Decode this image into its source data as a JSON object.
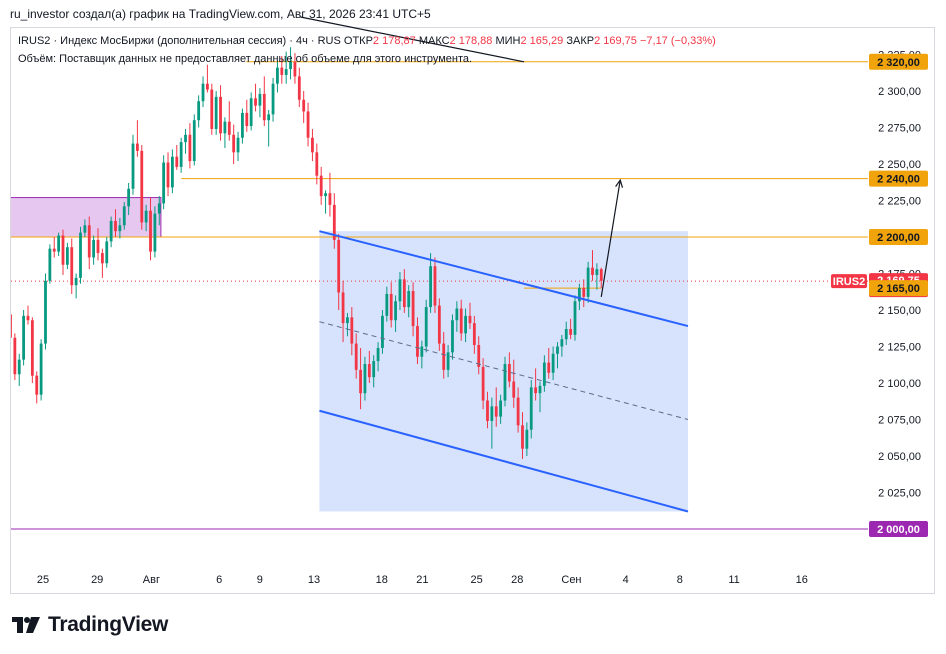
{
  "header": {
    "text": "ru_investor создал(а) график на TradingView.com, Авг 31, 2026 23:41 UTC+5"
  },
  "legend": {
    "symbol": "IRUS2 · Индекс МосБиржи (дополнительная сессия) · 4ч · RUS",
    "open_label": "ОТКР",
    "open_value": "2 178,87",
    "high_label": "МАКС",
    "high_value": "2 178,88",
    "low_label": "МИН",
    "low_value": "2 165,29",
    "close_label": "ЗАКР",
    "close_value": "2 169,75",
    "change": "−7,17 (−0,33%)",
    "volume_note": "Объём: Поставщик данных не предоставляет данные об объеме для этого инструмента."
  },
  "logo": {
    "text": "TradingView"
  },
  "colors": {
    "up": "#089981",
    "down": "#f23645",
    "level": "#f0a30a",
    "support": "#9c27b0",
    "channel_line": "#2962ff",
    "channel_fill": "#c9d9fb",
    "zone_fill": "#e6c7f0",
    "zone_border": "#9c27b0"
  },
  "chart_data": {
    "type": "candlestick",
    "symbol": "IRUS2",
    "timeframe": "4ч",
    "y_axis": {
      "range": [
        1985,
        2335
      ],
      "ticks": [
        "2 325,00",
        "2 300,00",
        "2 275,00",
        "2 250,00",
        "2 225,00",
        "2 200,00",
        "2 175,00",
        "2 150,00",
        "2 125,00",
        "2 100,00",
        "2 075,00",
        "2 050,00",
        "2 025,00",
        "2 000,00"
      ],
      "tick_values": [
        2325,
        2300,
        2275,
        2250,
        2225,
        2200,
        2175,
        2150,
        2125,
        2100,
        2075,
        2050,
        2025,
        2000
      ]
    },
    "x_axis": {
      "labels": [
        "25",
        "29",
        "Авг",
        "6",
        "9",
        "13",
        "18",
        "21",
        "25",
        "28",
        "Сен",
        "4",
        "8",
        "11",
        "16"
      ],
      "label_day_index": [
        0,
        4,
        8,
        13,
        16,
        20,
        25,
        28,
        32,
        35,
        39,
        43,
        47,
        51,
        56
      ]
    },
    "levels": [
      {
        "value": 2320,
        "label": "2 320,00",
        "kind": "resistance"
      },
      {
        "value": 2240,
        "label": "2 240,00",
        "kind": "resistance"
      },
      {
        "value": 2200,
        "label": "2 200,00",
        "kind": "resistance"
      },
      {
        "value": 2165,
        "label": "2 165,00",
        "kind": "resistance"
      },
      {
        "value": 2000,
        "label": "2 000,00",
        "kind": "support"
      }
    ],
    "last_price": {
      "label": "IRUS2",
      "value": 2169.75,
      "text": "2 169,75",
      "countdown": "01:18:31"
    },
    "zone": {
      "day_start": -2.5,
      "day_end": 8.7,
      "low": 2200,
      "high": 2227
    },
    "channel": {
      "upper": [
        [
          20.4,
          2204
        ],
        [
          47.6,
          2139
        ]
      ],
      "lower": [
        [
          20.4,
          2081
        ],
        [
          47.6,
          2012
        ]
      ],
      "middle": [
        [
          20.4,
          2142
        ],
        [
          47.6,
          2075
        ]
      ],
      "fill_end_day": 47.6
    },
    "projection_arrow": [
      [
        41.2,
        2159
      ],
      [
        42.6,
        2239
      ]
    ],
    "candles": [
      [
        2147,
        2149,
        2125,
        2131
      ],
      [
        2131,
        2134,
        2102,
        2106
      ],
      [
        2106,
        2120,
        2098,
        2116
      ],
      [
        2116,
        2150,
        2112,
        2146
      ],
      [
        2146,
        2153,
        2140,
        2143
      ],
      [
        2143,
        2145,
        2100,
        2105
      ],
      [
        2105,
        2108,
        2086,
        2092
      ],
      [
        2092,
        2130,
        2088,
        2127
      ],
      [
        2127,
        2175,
        2123,
        2170
      ],
      [
        2170,
        2195,
        2168,
        2192
      ],
      [
        2192,
        2200,
        2186,
        2190
      ],
      [
        2190,
        2203,
        2187,
        2201
      ],
      [
        2201,
        2205,
        2174,
        2181
      ],
      [
        2181,
        2196,
        2178,
        2193
      ],
      [
        2193,
        2199,
        2161,
        2167
      ],
      [
        2167,
        2175,
        2158,
        2172
      ],
      [
        2172,
        2207,
        2168,
        2203
      ],
      [
        2203,
        2212,
        2200,
        2208
      ],
      [
        2208,
        2214,
        2178,
        2186
      ],
      [
        2186,
        2201,
        2181,
        2198
      ],
      [
        2198,
        2206,
        2184,
        2189
      ],
      [
        2189,
        2192,
        2172,
        2182
      ],
      [
        2182,
        2200,
        2179,
        2197
      ],
      [
        2197,
        2214,
        2193,
        2211
      ],
      [
        2211,
        2219,
        2200,
        2204
      ],
      [
        2204,
        2213,
        2199,
        2208
      ],
      [
        2208,
        2224,
        2205,
        2221
      ],
      [
        2221,
        2237,
        2215,
        2233
      ],
      [
        2233,
        2270,
        2229,
        2264
      ],
      [
        2264,
        2280,
        2255,
        2259
      ],
      [
        2259,
        2263,
        2205,
        2210
      ],
      [
        2210,
        2222,
        2204,
        2218
      ],
      [
        2218,
        2227,
        2184,
        2190
      ],
      [
        2190,
        2221,
        2186,
        2216
      ],
      [
        2216,
        2228,
        2208,
        2223
      ],
      [
        2223,
        2256,
        2219,
        2251
      ],
      [
        2251,
        2258,
        2228,
        2234
      ],
      [
        2234,
        2260,
        2230,
        2255
      ],
      [
        2255,
        2263,
        2246,
        2248
      ],
      [
        2248,
        2268,
        2244,
        2265
      ],
      [
        2265,
        2274,
        2257,
        2270
      ],
      [
        2270,
        2278,
        2247,
        2252
      ],
      [
        2252,
        2284,
        2249,
        2280
      ],
      [
        2280,
        2297,
        2275,
        2293
      ],
      [
        2293,
        2310,
        2289,
        2305
      ],
      [
        2305,
        2318,
        2299,
        2301
      ],
      [
        2301,
        2305,
        2270,
        2274
      ],
      [
        2274,
        2300,
        2270,
        2296
      ],
      [
        2296,
        2304,
        2266,
        2271
      ],
      [
        2271,
        2282,
        2261,
        2279
      ],
      [
        2279,
        2293,
        2266,
        2270
      ],
      [
        2270,
        2277,
        2250,
        2258
      ],
      [
        2258,
        2272,
        2252,
        2268
      ],
      [
        2268,
        2288,
        2264,
        2285
      ],
      [
        2285,
        2294,
        2272,
        2276
      ],
      [
        2276,
        2299,
        2273,
        2295
      ],
      [
        2295,
        2305,
        2286,
        2290
      ],
      [
        2290,
        2302,
        2282,
        2298
      ],
      [
        2298,
        2310,
        2276,
        2280
      ],
      [
        2280,
        2287,
        2262,
        2284
      ],
      [
        2284,
        2309,
        2279,
        2305
      ],
      [
        2305,
        2320,
        2299,
        2316
      ],
      [
        2316,
        2324,
        2305,
        2311
      ],
      [
        2311,
        2327,
        2305,
        2315
      ],
      [
        2315,
        2330,
        2308,
        2320
      ],
      [
        2320,
        2326,
        2305,
        2310
      ],
      [
        2310,
        2316,
        2289,
        2294
      ],
      [
        2294,
        2300,
        2278,
        2286
      ],
      [
        2286,
        2292,
        2262,
        2268
      ],
      [
        2268,
        2274,
        2252,
        2258
      ],
      [
        2258,
        2264,
        2236,
        2242
      ],
      [
        2242,
        2248,
        2222,
        2228
      ],
      [
        2228,
        2232,
        2216,
        2230
      ],
      [
        2230,
        2244,
        2214,
        2222
      ],
      [
        2222,
        2230,
        2192,
        2198
      ],
      [
        2198,
        2202,
        2150,
        2162
      ],
      [
        2162,
        2170,
        2128,
        2141
      ],
      [
        2141,
        2148,
        2132,
        2145
      ],
      [
        2145,
        2152,
        2119,
        2127
      ],
      [
        2127,
        2134,
        2103,
        2109
      ],
      [
        2109,
        2124,
        2082,
        2093
      ],
      [
        2093,
        2118,
        2088,
        2113
      ],
      [
        2113,
        2122,
        2100,
        2104
      ],
      [
        2104,
        2119,
        2097,
        2115
      ],
      [
        2115,
        2128,
        2108,
        2124
      ],
      [
        2124,
        2150,
        2120,
        2146
      ],
      [
        2146,
        2166,
        2142,
        2161
      ],
      [
        2161,
        2169,
        2138,
        2143
      ],
      [
        2143,
        2160,
        2135,
        2156
      ],
      [
        2156,
        2176,
        2150,
        2171
      ],
      [
        2171,
        2178,
        2148,
        2152
      ],
      [
        2152,
        2167,
        2145,
        2163
      ],
      [
        2163,
        2169,
        2132,
        2139
      ],
      [
        2139,
        2145,
        2113,
        2118
      ],
      [
        2118,
        2129,
        2110,
        2125
      ],
      [
        2125,
        2157,
        2121,
        2152
      ],
      [
        2152,
        2189,
        2148,
        2180
      ],
      [
        2180,
        2186,
        2148,
        2153
      ],
      [
        2153,
        2158,
        2122,
        2127
      ],
      [
        2127,
        2135,
        2103,
        2109
      ],
      [
        2109,
        2126,
        2104,
        2121
      ],
      [
        2121,
        2147,
        2116,
        2143
      ],
      [
        2143,
        2156,
        2135,
        2151
      ],
      [
        2151,
        2157,
        2129,
        2134
      ],
      [
        2134,
        2151,
        2128,
        2146
      ],
      [
        2146,
        2155,
        2137,
        2141
      ],
      [
        2141,
        2146,
        2120,
        2126
      ],
      [
        2126,
        2132,
        2106,
        2111
      ],
      [
        2111,
        2117,
        2082,
        2088
      ],
      [
        2088,
        2094,
        2069,
        2074
      ],
      [
        2074,
        2090,
        2055,
        2084
      ],
      [
        2084,
        2097,
        2070,
        2077
      ],
      [
        2077,
        2092,
        2072,
        2088
      ],
      [
        2088,
        2118,
        2084,
        2113
      ],
      [
        2113,
        2121,
        2097,
        2101
      ],
      [
        2101,
        2116,
        2083,
        2090
      ],
      [
        2090,
        2097,
        2066,
        2071
      ],
      [
        2071,
        2080,
        2048,
        2055
      ],
      [
        2055,
        2073,
        2050,
        2068
      ],
      [
        2068,
        2102,
        2062,
        2097
      ],
      [
        2097,
        2110,
        2088,
        2093
      ],
      [
        2093,
        2101,
        2080,
        2098
      ],
      [
        2098,
        2119,
        2094,
        2114
      ],
      [
        2114,
        2124,
        2103,
        2107
      ],
      [
        2107,
        2125,
        2102,
        2120
      ],
      [
        2120,
        2128,
        2110,
        2125
      ],
      [
        2125,
        2133,
        2118,
        2130
      ],
      [
        2130,
        2142,
        2126,
        2137
      ],
      [
        2137,
        2144,
        2130,
        2133
      ],
      [
        2133,
        2160,
        2129,
        2156
      ],
      [
        2156,
        2168,
        2150,
        2165
      ],
      [
        2165,
        2171,
        2152,
        2159
      ],
      [
        2159,
        2183,
        2155,
        2179
      ],
      [
        2179,
        2191,
        2170,
        2174
      ],
      [
        2174,
        2182,
        2164,
        2178
      ],
      [
        2178,
        2179,
        2165,
        2170
      ]
    ]
  }
}
